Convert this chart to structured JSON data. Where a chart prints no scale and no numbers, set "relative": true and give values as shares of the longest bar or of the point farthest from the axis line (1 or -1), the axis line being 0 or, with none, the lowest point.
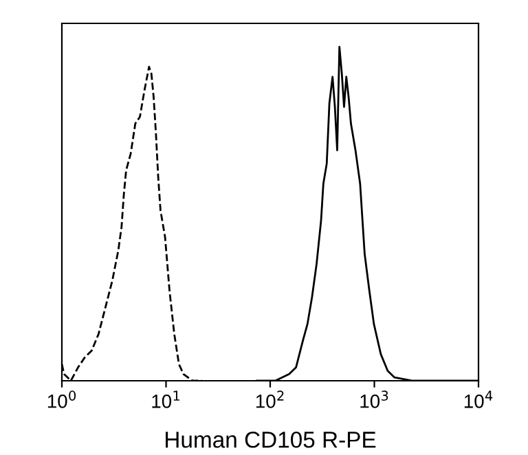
{
  "chart_data": {
    "type": "line",
    "relative": true,
    "log": "x",
    "xlabel": "Human CD105 R-PE",
    "xlim": [
      1,
      10000
    ],
    "xticks": [
      {
        "value": 1,
        "label": "10$^{0}$"
      },
      {
        "value": 10,
        "label": "10$^{1}$"
      },
      {
        "value": 100,
        "label": "10$^{2}$"
      },
      {
        "value": 1000,
        "label": "10$^{3}$"
      },
      {
        "value": 10000,
        "label": "10$^{4}$"
      }
    ],
    "tick_labels": "x",
    "grid": false,
    "marker": "none",
    "series": [
      {
        "color": "#000000",
        "line_style": "dashed",
        "x": [
          1,
          1.05,
          1.22,
          1.43,
          1.66,
          1.93,
          2.25,
          2.62,
          3.05,
          3.48,
          3.74,
          3.94,
          4.14,
          4.58,
          5.07,
          5.61,
          6.21,
          6.87,
          7.23,
          7.6,
          8.0,
          8.41,
          8.85,
          9.79,
          10.8,
          12.0,
          13.3,
          14.7,
          18.0,
          22.1
        ],
        "values": [
          0.05,
          0.02,
          0.0,
          0.04,
          0.07,
          0.09,
          0.14,
          0.22,
          0.3,
          0.39,
          0.46,
          0.56,
          0.63,
          0.68,
          0.77,
          0.79,
          0.87,
          0.94,
          0.92,
          0.85,
          0.74,
          0.61,
          0.51,
          0.43,
          0.27,
          0.14,
          0.05,
          0.02,
          0.0,
          0.0
        ]
      },
      {
        "color": "#000000",
        "line_style": "solid",
        "x": [
          74.5,
          112,
          152,
          177,
          206,
          228,
          252,
          279,
          308,
          324,
          349,
          370,
          397,
          418,
          440,
          462,
          487,
          512,
          538,
          566,
          596,
          659,
          730,
          807,
          895,
          990,
          1153,
          1343,
          1563,
          2344,
          9700
        ],
        "values": [
          0.0,
          0.0,
          0.02,
          0.04,
          0.12,
          0.17,
          0.25,
          0.35,
          0.48,
          0.59,
          0.65,
          0.83,
          0.91,
          0.82,
          0.69,
          1.0,
          0.92,
          0.82,
          0.91,
          0.85,
          0.77,
          0.69,
          0.59,
          0.38,
          0.27,
          0.17,
          0.08,
          0.03,
          0.01,
          0.0,
          0.0
        ]
      }
    ]
  }
}
